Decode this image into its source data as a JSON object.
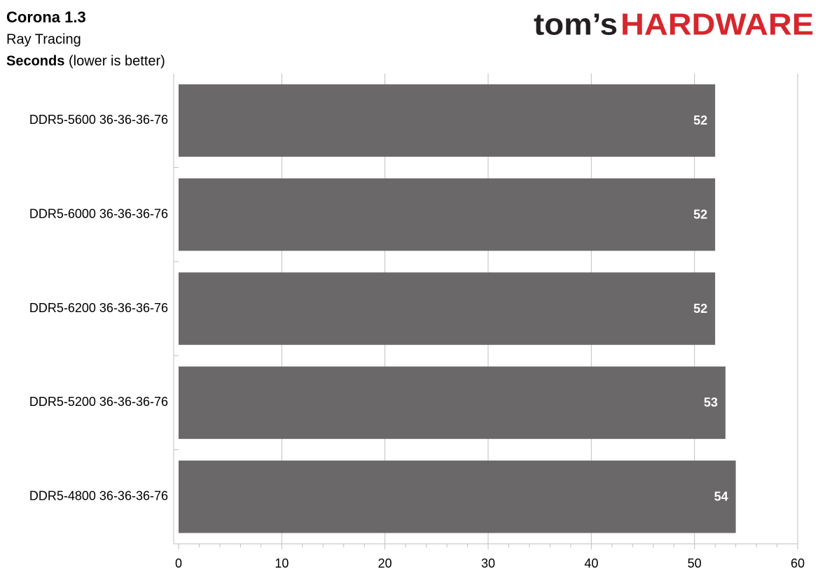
{
  "chart_data": {
    "type": "hbar",
    "title": "Corona 1.3",
    "subtitle": "Ray Tracing",
    "axis_label": "Seconds",
    "axis_note": "(lower is better)",
    "logo": {
      "first": "tom’s",
      "second": "HARDWARE"
    },
    "categories": [
      "DDR5-5600 36-36-36-76",
      "DDR5-6000 36-36-36-76",
      "DDR5-6200 36-36-36-76",
      "DDR5-5200 36-36-36-76",
      "DDR5-4800 36-36-36-76"
    ],
    "values": [
      52,
      52,
      52,
      53,
      54
    ],
    "color": "#6a6868",
    "xlim": [
      0,
      60
    ],
    "xticks": [
      0,
      10,
      20,
      30,
      40,
      50,
      60
    ],
    "xticks_minor": [
      2,
      4,
      6,
      8,
      12,
      14,
      16,
      18,
      22,
      24,
      26,
      28,
      32,
      34,
      36,
      38,
      42,
      44,
      46,
      48,
      52,
      54,
      56,
      58
    ],
    "grid": true
  }
}
